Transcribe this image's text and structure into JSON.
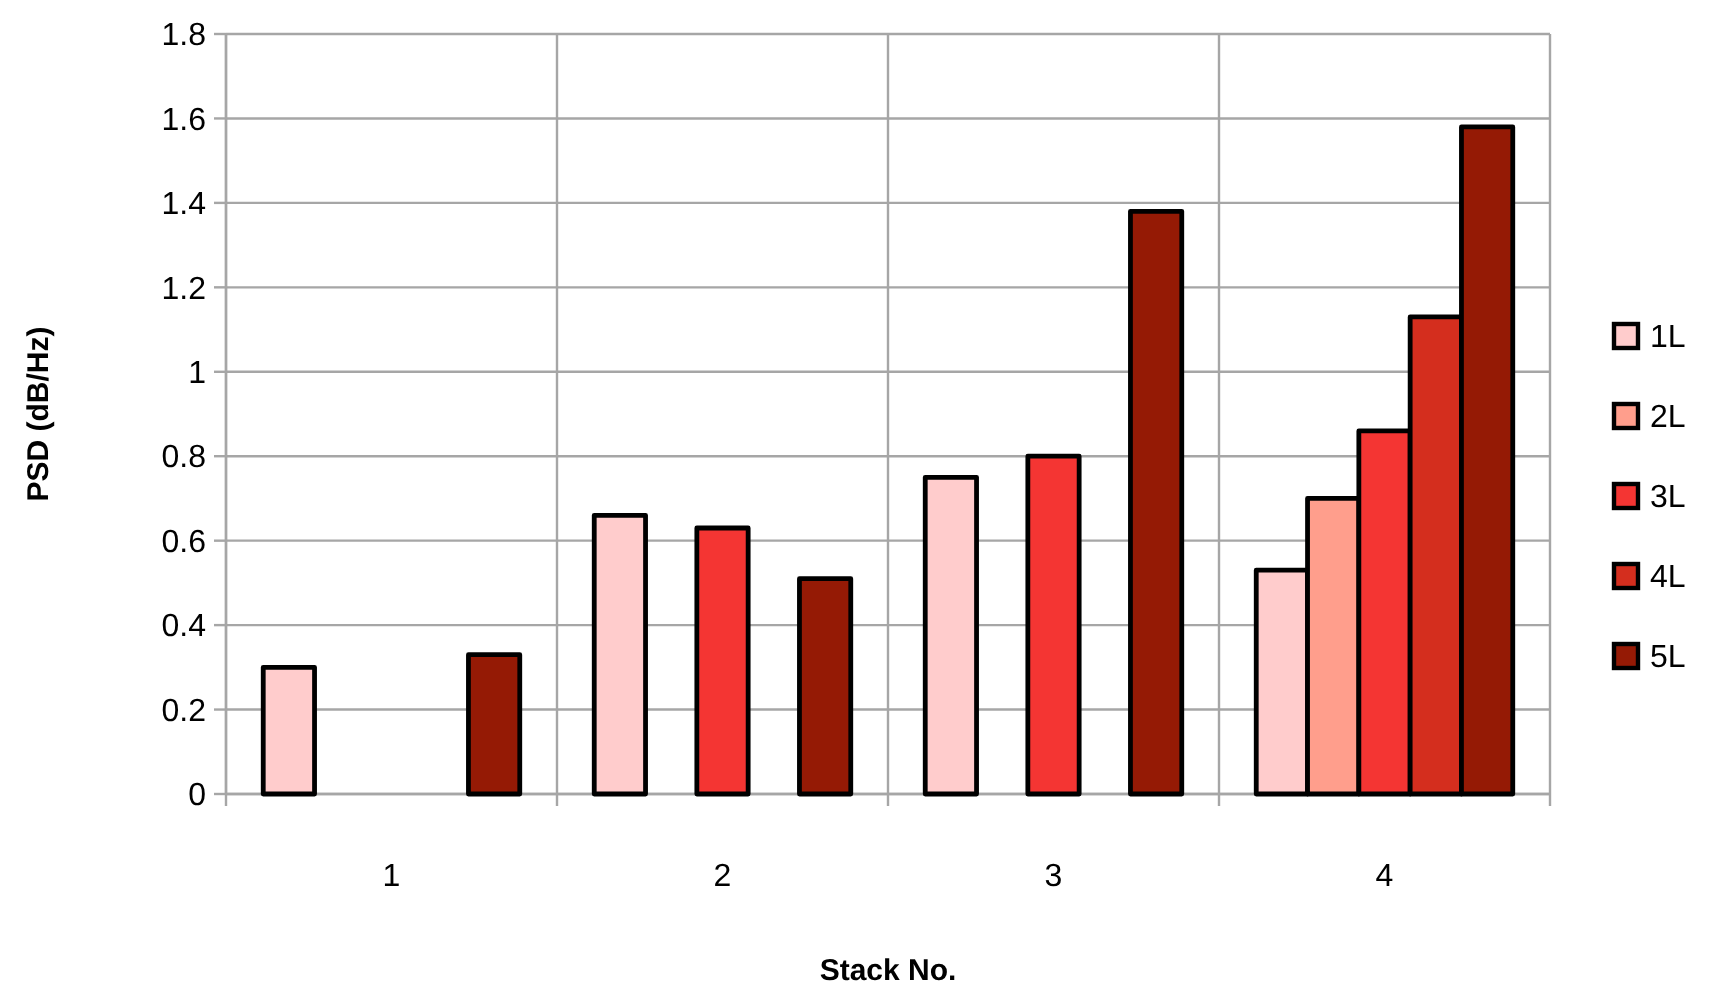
{
  "chart_data": {
    "type": "bar",
    "xlabel": "Stack No.",
    "ylabel": "PSD (dB/Hz)",
    "categories": [
      "1",
      "2",
      "3",
      "4"
    ],
    "series": [
      {
        "name": "1L",
        "color": "#ffcccc",
        "values": [
          0.3,
          0.66,
          0.75,
          0.53
        ]
      },
      {
        "name": "2L",
        "color": "#ff9e8c",
        "values": [
          null,
          null,
          null,
          0.7
        ]
      },
      {
        "name": "3L",
        "color": "#f43533",
        "values": [
          null,
          0.63,
          0.8,
          0.86
        ]
      },
      {
        "name": "4L",
        "color": "#d42e1e",
        "values": [
          null,
          null,
          null,
          1.13
        ]
      },
      {
        "name": "5L",
        "color": "#951a05",
        "values": [
          0.33,
          0.51,
          1.38,
          1.58
        ]
      }
    ],
    "ylim": [
      0,
      1.8
    ],
    "yticks": [
      0,
      0.2,
      0.4,
      0.6,
      0.8,
      1,
      1.2,
      1.4,
      1.6,
      1.8
    ],
    "grid": true,
    "legend": "right"
  }
}
